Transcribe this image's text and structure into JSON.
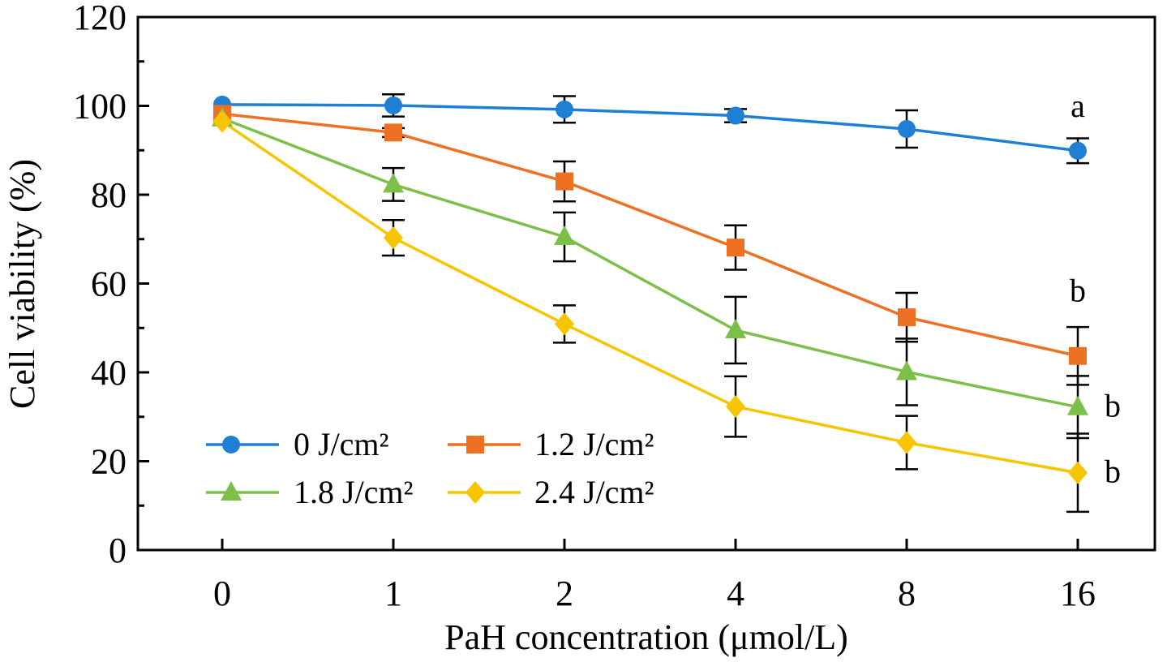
{
  "chart_data": {
    "type": "line",
    "xlabel": "PaH concentration (μmol/L)",
    "ylabel": "Cell viability (%)",
    "categories": [
      "0",
      "1",
      "2",
      "4",
      "8",
      "16"
    ],
    "ylim": [
      0,
      120
    ],
    "yticks": [
      0,
      20,
      40,
      60,
      80,
      100,
      120
    ],
    "grid": false,
    "legend_position": "bottom-left",
    "series": [
      {
        "name": "0 J/cm²",
        "color": "#1f7fd4",
        "marker": "circle",
        "values": [
          100.3,
          100.1,
          99.2,
          97.8,
          94.8,
          89.9
        ],
        "errors": [
          0.5,
          2.5,
          3.0,
          1.5,
          4.2,
          2.8
        ]
      },
      {
        "name": "1.2 J/cm²",
        "color": "#ee7022",
        "marker": "square",
        "values": [
          98.2,
          94.0,
          83.0,
          68.1,
          52.4,
          43.7
        ],
        "errors": [
          0.5,
          1.0,
          4.5,
          5.0,
          5.5,
          6.5
        ]
      },
      {
        "name": "1.8 J/cm²",
        "color": "#7cc04a",
        "marker": "triangle",
        "values": [
          97.2,
          82.3,
          70.5,
          49.5,
          40.1,
          32.2
        ],
        "errors": [
          0.5,
          3.7,
          5.5,
          7.5,
          7.5,
          7.0
        ]
      },
      {
        "name": "2.4 J/cm²",
        "color": "#f7c400",
        "marker": "diamond",
        "values": [
          96.5,
          70.3,
          50.9,
          32.3,
          24.2,
          17.4
        ],
        "errors": [
          0.5,
          4.0,
          4.2,
          6.8,
          6.0,
          8.8
        ]
      }
    ],
    "annotations": [
      {
        "text": "a",
        "category": "16",
        "y": 97.5,
        "placement": "above"
      },
      {
        "text": "b",
        "category": "16",
        "y": 56.0,
        "placement": "above"
      },
      {
        "text": "b",
        "category": "16",
        "y": 32.2,
        "placement": "right"
      },
      {
        "text": "b",
        "category": "16",
        "y": 17.4,
        "placement": "right"
      }
    ]
  }
}
